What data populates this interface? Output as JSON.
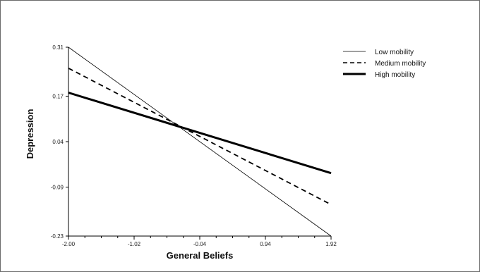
{
  "chart_data": {
    "type": "line",
    "title": "",
    "xlabel": "General Beliefs",
    "ylabel": "Depression",
    "xlim": [
      -2.0,
      1.92
    ],
    "ylim": [
      -0.23,
      0.31
    ],
    "x_ticks": [
      "-2.00",
      "-1.02",
      "-0.04",
      "0.94",
      "1.92"
    ],
    "y_ticks": [
      "-0.23",
      "-0.09",
      "0.04",
      "0.17",
      "0.31"
    ],
    "grid": false,
    "legend_position": "top-right",
    "series": [
      {
        "name": "Low mobility",
        "x": [
          -2.0,
          1.92
        ],
        "y": [
          0.31,
          -0.23
        ],
        "line_style": "thin-solid",
        "color": "#000000"
      },
      {
        "name": "Medium mobility",
        "x": [
          -2.0,
          1.92
        ],
        "y": [
          0.25,
          -0.14
        ],
        "line_style": "dashed",
        "color": "#000000"
      },
      {
        "name": "High mobility",
        "x": [
          -2.0,
          1.92
        ],
        "y": [
          0.18,
          -0.05
        ],
        "line_style": "thick-solid",
        "color": "#000000"
      }
    ]
  }
}
